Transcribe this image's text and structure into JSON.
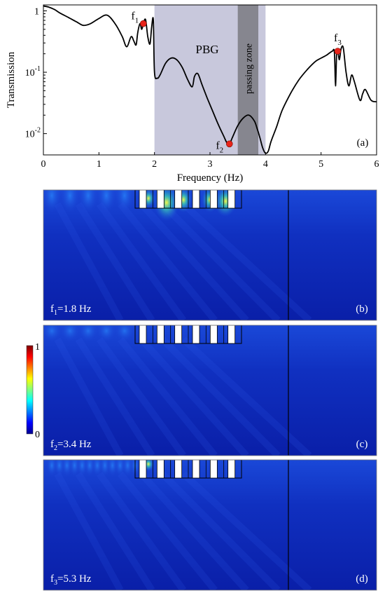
{
  "chart_data": [
    {
      "type": "line",
      "panel_label": "(a)",
      "xlabel": "Frequency (Hz)",
      "ylabel": "Transmission",
      "xlim": [
        0,
        6
      ],
      "ylim": [
        0.0045,
        1.25
      ],
      "y_scale": "log",
      "x_ticks": [
        "0",
        "1",
        "2",
        "3",
        "4",
        "5",
        "6"
      ],
      "y_ticks": [
        {
          "value": 1,
          "base": "1",
          "exp": ""
        },
        {
          "value": 0.1,
          "base": "10",
          "exp": "-1"
        },
        {
          "value": 0.01,
          "base": "10",
          "exp": "-2"
        }
      ],
      "regions": [
        {
          "label": "PBG",
          "x_range": [
            2.0,
            4.0
          ],
          "color": "#c8c8dc"
        },
        {
          "label": "passing zone",
          "x_range": [
            3.5,
            3.87
          ],
          "color": "#86868f"
        }
      ],
      "markers": [
        {
          "label": "f",
          "sub": "1",
          "x": 1.8,
          "y": 0.62
        },
        {
          "label": "f",
          "sub": "2",
          "x": 3.35,
          "y": 0.0068
        },
        {
          "label": "f",
          "sub": "3",
          "x": 5.3,
          "y": 0.22
        }
      ],
      "series": [
        {
          "color": "#000000",
          "x": [
            0.0,
            0.1,
            0.2,
            0.3,
            0.45,
            0.6,
            0.72,
            0.85,
            1.0,
            1.15,
            1.3,
            1.42,
            1.5,
            1.58,
            1.63,
            1.67,
            1.7,
            1.74,
            1.77,
            1.8,
            1.84,
            1.88,
            1.92,
            1.95,
            1.98,
            2.0,
            2.05,
            2.1,
            2.2,
            2.3,
            2.4,
            2.5,
            2.6,
            2.68,
            2.72,
            2.78,
            2.85,
            2.95,
            3.05,
            3.15,
            3.25,
            3.3,
            3.35,
            3.4,
            3.5,
            3.6,
            3.7,
            3.8,
            3.85,
            3.9,
            3.95,
            4.0,
            4.05,
            4.1,
            4.2,
            4.3,
            4.45,
            4.6,
            4.75,
            4.9,
            5.0,
            5.1,
            5.2,
            5.24,
            5.26,
            5.28,
            5.3,
            5.33,
            5.36,
            5.4,
            5.45,
            5.5,
            5.55,
            5.6,
            5.7,
            5.75,
            5.8,
            5.9,
            6.0
          ],
          "y": [
            1.2,
            1.15,
            1.05,
            0.92,
            0.78,
            0.66,
            0.58,
            0.62,
            0.75,
            0.85,
            0.6,
            0.38,
            0.26,
            0.38,
            0.32,
            0.28,
            0.45,
            0.62,
            0.5,
            0.62,
            0.72,
            0.38,
            0.29,
            0.55,
            0.7,
            0.1,
            0.08,
            0.09,
            0.14,
            0.17,
            0.16,
            0.12,
            0.075,
            0.058,
            0.085,
            0.095,
            0.065,
            0.038,
            0.023,
            0.014,
            0.009,
            0.0072,
            0.0068,
            0.0085,
            0.0135,
            0.018,
            0.02,
            0.016,
            0.012,
            0.0085,
            0.0058,
            0.0048,
            0.0052,
            0.0075,
            0.013,
            0.024,
            0.045,
            0.075,
            0.11,
            0.15,
            0.17,
            0.19,
            0.22,
            0.21,
            0.06,
            0.2,
            0.23,
            0.16,
            0.24,
            0.25,
            0.1,
            0.06,
            0.09,
            0.07,
            0.035,
            0.045,
            0.052,
            0.035,
            0.033
          ]
        }
      ]
    }
  ],
  "field_maps": [
    {
      "panel_label": "(b)",
      "caption_base": "f",
      "caption_sub": "1",
      "caption_rest": "=1.8 Hz",
      "intensity": "high"
    },
    {
      "panel_label": "(c)",
      "caption_base": "f",
      "caption_sub": "2",
      "caption_rest": "=3.4 Hz",
      "intensity": "low"
    },
    {
      "panel_label": "(d)",
      "caption_base": "f",
      "caption_sub": "3",
      "caption_rest": "=5.3 Hz",
      "intensity": "mid"
    }
  ],
  "colorbar": {
    "max_label": "1",
    "min_label": "0",
    "colors": [
      "#7f0000",
      "#ff0000",
      "#ff7f00",
      "#ffff00",
      "#7fff7f",
      "#00ffff",
      "#007fff",
      "#0000ff",
      "#00008f"
    ]
  },
  "colors": {
    "field_background": "#0a1fa8",
    "scatterer": "#ffffff",
    "marker": "#e8241a"
  }
}
